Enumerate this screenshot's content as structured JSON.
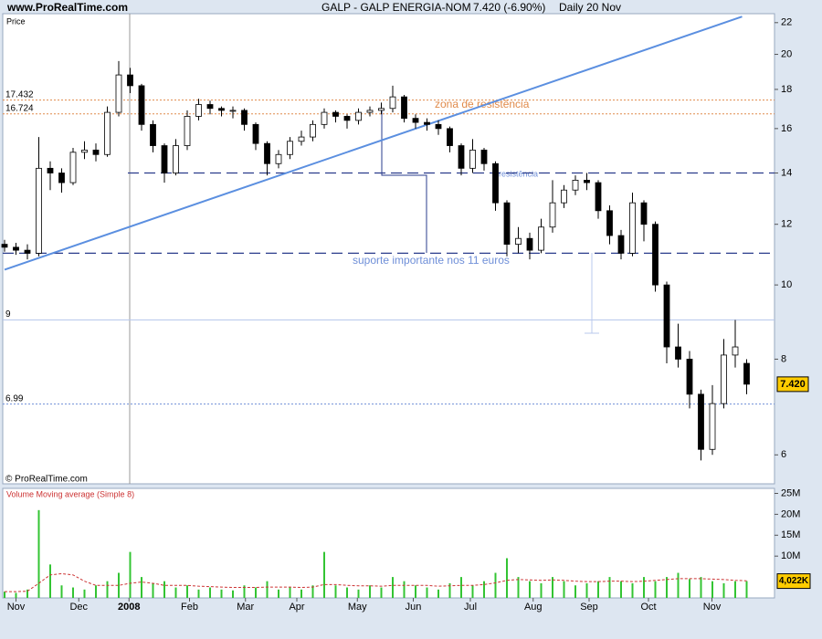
{
  "header": {
    "site": "www.ProRealTime.com",
    "title": "GALP - GALP ENERGIA-NOM",
    "quote": "7.420 (-6.90%)",
    "period": "Daily",
    "date": "20 Nov"
  },
  "chart_data": [
    {
      "type": "candlestick",
      "y_label": "Price",
      "copyright": "© ProRealTime.com",
      "log_scale": true,
      "xlim": [
        -0.16,
        67.44
      ],
      "ylim": [
        5.5,
        22.6
      ],
      "yticks": [
        6,
        8,
        10,
        12,
        14,
        16,
        18,
        20,
        22
      ],
      "up_color": "#ffffff",
      "down_color": "#000000",
      "open": [
        11.3,
        11.2,
        11.1,
        11.0,
        14.2,
        14.0,
        13.6,
        14.9,
        15.0,
        14.8,
        16.8,
        18.8,
        18.2,
        16.2,
        15.2,
        14.0,
        15.2,
        16.6,
        17.2,
        17.0,
        16.9,
        16.9,
        16.2,
        15.3,
        14.4,
        14.8,
        15.4,
        15.6,
        16.2,
        16.8,
        16.6,
        16.4,
        16.8,
        16.9,
        17.0,
        17.6,
        16.5,
        16.3,
        16.2,
        16.0,
        15.2,
        14.2,
        15.0,
        14.4,
        12.8,
        11.3,
        11.5,
        11.1,
        11.9,
        12.8,
        13.3,
        13.7,
        13.6,
        12.5,
        11.6,
        11.0,
        12.8,
        12.0,
        10.0,
        8.3,
        8.0,
        7.2,
        6.1,
        7.0,
        8.1,
        7.9
      ],
      "high": [
        11.45,
        11.35,
        11.3,
        15.6,
        14.5,
        14.2,
        15.1,
        15.4,
        15.3,
        17.1,
        19.6,
        19.2,
        18.3,
        16.4,
        15.3,
        15.5,
        16.9,
        17.5,
        17.4,
        17.1,
        17.1,
        17.0,
        16.3,
        15.4,
        15.0,
        15.6,
        15.9,
        16.4,
        17.0,
        16.9,
        16.7,
        17.0,
        17.1,
        17.3,
        18.2,
        17.7,
        16.7,
        16.5,
        16.4,
        16.1,
        15.3,
        15.5,
        15.1,
        14.5,
        12.9,
        11.9,
        11.7,
        12.2,
        13.7,
        13.5,
        13.9,
        14.0,
        13.7,
        12.7,
        11.8,
        13.2,
        12.9,
        12.1,
        10.1,
        8.9,
        8.2,
        7.3,
        7.4,
        8.5,
        9.0,
        8.0
      ],
      "low": [
        11.05,
        10.95,
        10.8,
        10.9,
        13.3,
        13.2,
        13.5,
        14.6,
        14.5,
        14.7,
        16.6,
        17.8,
        15.9,
        14.9,
        13.6,
        13.9,
        15.0,
        16.4,
        16.7,
        16.6,
        16.5,
        15.9,
        15.0,
        13.9,
        14.2,
        14.6,
        15.2,
        15.4,
        16.0,
        16.3,
        16.0,
        16.2,
        16.6,
        16.7,
        16.8,
        16.3,
        16.0,
        15.9,
        15.7,
        14.9,
        13.9,
        14.0,
        14.1,
        12.5,
        10.9,
        11.0,
        10.8,
        11.0,
        11.7,
        12.6,
        13.1,
        13.3,
        12.2,
        11.3,
        10.8,
        10.9,
        11.4,
        9.8,
        7.9,
        7.8,
        6.9,
        5.9,
        6.0,
        6.9,
        7.8,
        7.2
      ],
      "close": [
        11.2,
        11.1,
        11.0,
        14.2,
        14.0,
        13.6,
        14.9,
        15.0,
        14.8,
        16.8,
        18.8,
        18.2,
        16.2,
        15.2,
        14.0,
        15.2,
        16.6,
        17.2,
        17.0,
        16.9,
        16.9,
        16.2,
        15.3,
        14.4,
        14.8,
        15.4,
        15.6,
        16.2,
        16.8,
        16.6,
        16.4,
        16.8,
        16.9,
        17.0,
        17.6,
        16.5,
        16.3,
        16.2,
        16.0,
        15.2,
        14.2,
        15.0,
        14.4,
        12.8,
        11.3,
        11.5,
        11.1,
        11.9,
        12.8,
        13.3,
        13.7,
        13.6,
        12.5,
        11.6,
        11.0,
        12.8,
        12.0,
        10.0,
        8.3,
        8.0,
        7.2,
        6.1,
        7.0,
        8.1,
        8.3,
        7.42
      ],
      "price_tag": {
        "value": 7.42,
        "label": "7.420"
      },
      "trendline": {
        "x": [
          0,
          64.6
        ],
        "y": [
          10.47,
          22.4
        ],
        "color": "#5b8fe0"
      },
      "levels": [
        {
          "value": 17.432,
          "color": "#e08a4a",
          "style": "dotted",
          "show_label": true
        },
        {
          "value": 16.724,
          "color": "#e08a4a",
          "style": "dotted",
          "show_label": true
        },
        {
          "value": 9,
          "color": "#b8c8ec",
          "style": "solid",
          "show_label": true
        },
        {
          "value": 6.99,
          "color": "#6f8fd8",
          "style": "dotted",
          "show_label": true
        },
        {
          "value": 14,
          "color": "#2a3c8c",
          "style": "dashed",
          "show_label": false,
          "from": 10.8
        },
        {
          "value": 11,
          "color": "#2a3c8c",
          "style": "dashed",
          "show_label": false
        }
      ],
      "annotations": [
        "zona de resistência",
        "resistência",
        "suporte importante nos 11 euros"
      ]
    },
    {
      "type": "volume",
      "title": "Volume Moving average (Simple 8)",
      "xlim": [
        -0.16,
        67.44
      ],
      "ylim": [
        0,
        26.2
      ],
      "yticks": [
        {
          "value": 10,
          "label": "10M"
        },
        {
          "value": 15,
          "label": "15M"
        },
        {
          "value": 20,
          "label": "20M"
        },
        {
          "value": 25,
          "label": "25M"
        }
      ],
      "xticks": [
        {
          "value": 1,
          "label": "Nov"
        },
        {
          "value": 6.5,
          "label": "Dec"
        },
        {
          "value": 10.9,
          "label": "2008"
        },
        {
          "value": 16.2,
          "label": "Feb"
        },
        {
          "value": 21.1,
          "label": "Mar"
        },
        {
          "value": 25.6,
          "label": "Apr"
        },
        {
          "value": 30.9,
          "label": "May"
        },
        {
          "value": 35.8,
          "label": "Jun"
        },
        {
          "value": 40.8,
          "label": "Jul"
        },
        {
          "value": 46.3,
          "label": "Aug"
        },
        {
          "value": 51.2,
          "label": "Sep"
        },
        {
          "value": 56.4,
          "label": "Oct"
        },
        {
          "value": 61.96,
          "label": "Nov"
        }
      ],
      "series": [
        {
          "color": "#33c433",
          "values": [
            1.5,
            1.2,
            2.0,
            21,
            8,
            3,
            2.5,
            2.0,
            3.0,
            4.0,
            6.0,
            11,
            5,
            3.5,
            4.0,
            2.5,
            3.0,
            2.0,
            2.5,
            2.0,
            1.8,
            3.0,
            2.5,
            4.0,
            2.0,
            2.5,
            2.0,
            3.0,
            11,
            3.0,
            2.5,
            2.0,
            3.0,
            2.5,
            5.0,
            4.0,
            3.0,
            2.5,
            2.0,
            3.5,
            5.0,
            3.0,
            4.0,
            6.0,
            9.5,
            5.0,
            4.0,
            3.5,
            5.0,
            4.0,
            3.0,
            3.5,
            4.0,
            5.0,
            4.0,
            3.5,
            5.0,
            4.0,
            5.0,
            6.0,
            4.5,
            5.0,
            4.0,
            3.5,
            4.0,
            4.022
          ]
        },
        {
          "color": "#cc3333",
          "values": [
            1.5,
            1.5,
            1.6,
            3.5,
            5.5,
            5.8,
            5.5,
            4.0,
            3.0,
            3.0,
            3.0,
            3.5,
            3.8,
            3.5,
            3.0,
            3.0,
            3.0,
            2.8,
            2.7,
            2.6,
            2.5,
            2.5,
            2.5,
            2.6,
            2.6,
            2.6,
            2.5,
            2.6,
            3.2,
            3.2,
            3.0,
            2.9,
            2.9,
            2.8,
            3.0,
            3.0,
            3.0,
            3.0,
            2.8,
            2.9,
            3.0,
            3.0,
            3.2,
            3.6,
            4.2,
            4.4,
            4.3,
            4.2,
            4.3,
            4.2,
            4.0,
            3.9,
            3.9,
            4.0,
            4.0,
            3.9,
            4.0,
            4.2,
            4.4,
            4.6,
            4.6,
            4.6,
            4.5,
            4.4,
            4.2,
            4.1
          ]
        }
      ],
      "value_tag": {
        "value": 4.022,
        "label": "4,022K"
      }
    }
  ]
}
